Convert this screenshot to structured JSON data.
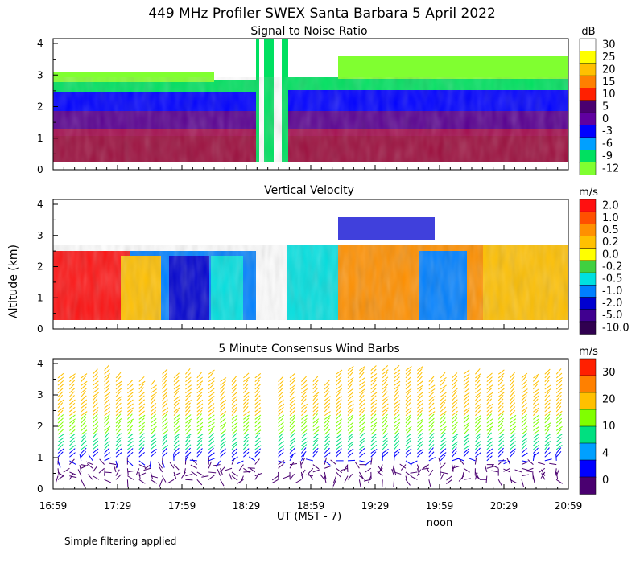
{
  "figure": {
    "title": "449 MHz Profiler SWEX Santa Barbara  5 April 2022",
    "ylabel": "Altitude (km)",
    "xlabel": "UT  (MST - 7)",
    "noon_label": "noon",
    "footnote": "Simple filtering applied"
  },
  "chart_data": [
    {
      "type": "heatmap",
      "title": "Signal to Noise Ratio",
      "units": "dB",
      "x_ticks": [
        "16:59",
        "17:29",
        "17:59",
        "18:29",
        "18:59",
        "19:29",
        "19:59",
        "20:29",
        "20:59"
      ],
      "y_ticks": [
        "0",
        "1",
        "2",
        "3",
        "4"
      ],
      "ylim": [
        0,
        4
      ],
      "colorbar_labels": [
        "30",
        "25",
        "20",
        "15",
        "10",
        "5",
        "0",
        "-3",
        "-6",
        "-9",
        "-12"
      ],
      "colorbar_colors": [
        "#ffffff",
        "#ffff00",
        "#ffc000",
        "#ff8000",
        "#ff2000",
        "#4a0070",
        "#6000a0",
        "#0000ff",
        "#00a0ff",
        "#00e060",
        "#80ff30"
      ],
      "description_levels": [
        {
          "altitude_km": "0.3-1.0",
          "snr_db": "10 to 15"
        },
        {
          "altitude_km": "1.0-1.8",
          "snr_db": "0 to 5"
        },
        {
          "altitude_km": "1.8-2.4",
          "snr_db": "-3 to -6"
        },
        {
          "altitude_km": "2.4-3.0",
          "snr_db": "-9 to -12"
        }
      ]
    },
    {
      "type": "heatmap",
      "title": "Vertical Velocity",
      "units": "m/s",
      "x_ticks": [
        "16:59",
        "17:29",
        "17:59",
        "18:29",
        "18:59",
        "19:29",
        "19:59",
        "20:29",
        "20:59"
      ],
      "y_ticks": [
        "0",
        "1",
        "2",
        "3",
        "4"
      ],
      "ylim": [
        0,
        4
      ],
      "colorbar_labels": [
        "2.0",
        "1.0",
        "0.5",
        "0.2",
        "0.0",
        "-0.2",
        "-0.5",
        "-1.0",
        "-2.0",
        "-5.0",
        "-10.0"
      ],
      "colorbar_colors": [
        "#ff1010",
        "#ff5000",
        "#ff9000",
        "#ffc000",
        "#ffff00",
        "#40d040",
        "#00e0e0",
        "#0080ff",
        "#0000d0",
        "#400090",
        "#300050"
      ]
    },
    {
      "type": "scatter",
      "title": "5 Minute Consensus Wind Barbs",
      "units": "m/s",
      "x_ticks": [
        "16:59",
        "17:29",
        "17:59",
        "18:29",
        "18:59",
        "19:29",
        "19:59",
        "20:29",
        "20:59"
      ],
      "y_ticks": [
        "0",
        "1",
        "2",
        "3",
        "4"
      ],
      "ylim": [
        0,
        4
      ],
      "colorbar_labels": [
        "30",
        "20",
        "10",
        "4",
        "0"
      ],
      "colorbar_colors": [
        "#ff2000",
        "#ff8000",
        "#ffc000",
        "#80ff00",
        "#00e080",
        "#00a0ff",
        "#0000ff",
        "#4a0070"
      ],
      "wind_speed_by_altitude": [
        {
          "altitude_km": "0-1",
          "speed_ms": "0-4"
        },
        {
          "altitude_km": "1-2",
          "speed_ms": "4-10"
        },
        {
          "altitude_km": "2-4",
          "speed_ms": "10-20"
        }
      ]
    }
  ]
}
